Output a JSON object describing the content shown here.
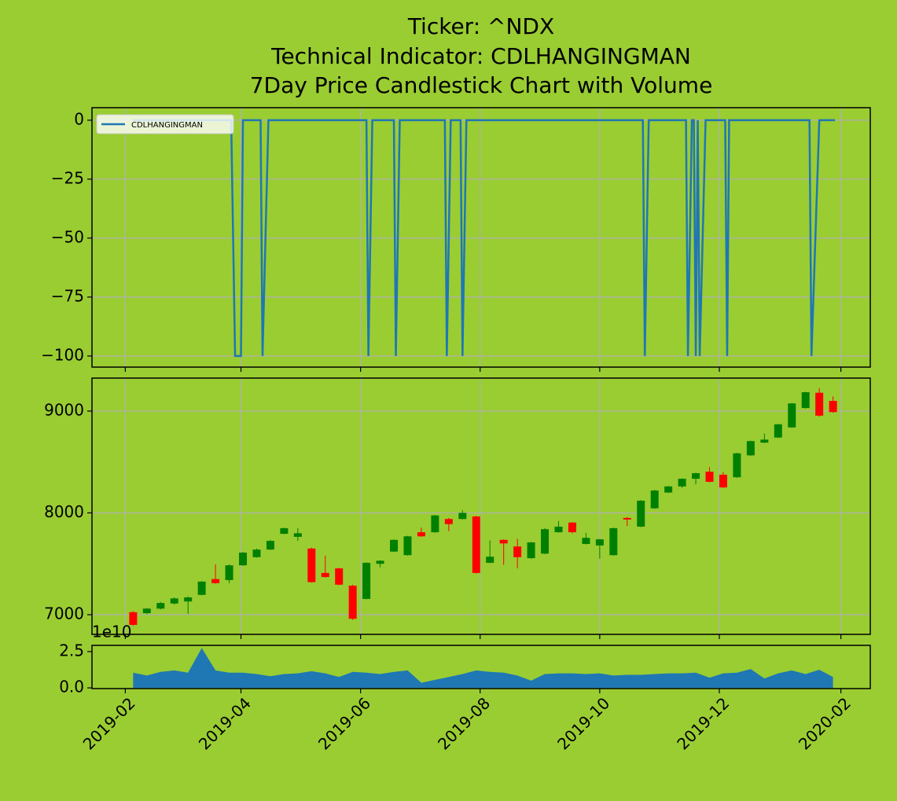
{
  "chart_data": [
    {
      "type": "line",
      "title": [
        "Ticker: ^NDX",
        "Technical Indicator: CDLHANGINGMAN",
        "7Day Price Candlestick Chart with Volume"
      ],
      "x": [
        "2019-02-05",
        "2019-03-27",
        "2019-03-29",
        "2019-04-01",
        "2019-04-02",
        "2019-04-11",
        "2019-04-12",
        "2019-04-15",
        "2019-06-04",
        "2019-06-05",
        "2019-06-07",
        "2019-06-18",
        "2019-06-19",
        "2019-06-21",
        "2019-07-14",
        "2019-07-15",
        "2019-07-17",
        "2019-07-22",
        "2019-07-23",
        "2019-07-25",
        "2019-10-23",
        "2019-10-24",
        "2019-10-26",
        "2019-11-14",
        "2019-11-15",
        "2019-11-17",
        "2019-11-18",
        "2019-11-19",
        "2019-11-20",
        "2019-11-21",
        "2019-11-24",
        "2019-12-04",
        "2019-12-05",
        "2019-12-06",
        "2020-01-16",
        "2020-01-17",
        "2020-01-21",
        "2020-01-29"
      ],
      "series": [
        {
          "name": "CDLHANGINGMAN",
          "color": "#1f77b4",
          "values": [
            0,
            0,
            -100,
            -100,
            0,
            0,
            -100,
            0,
            0,
            -100,
            0,
            0,
            -100,
            0,
            0,
            -100,
            0,
            0,
            -100,
            0,
            0,
            -100,
            0,
            0,
            -100,
            0,
            0,
            -100,
            0,
            -100,
            0,
            0,
            -100,
            0,
            0,
            -100,
            0,
            0
          ]
        }
      ],
      "ylim": [
        -104.7,
        5.3
      ],
      "yticks": [
        0,
        {
          "value": -25,
          "label": "−25"
        },
        {
          "value": -50,
          "label": "−50"
        },
        {
          "value": -75,
          "label": "−75"
        },
        {
          "value": -100,
          "label": "−100"
        }
      ],
      "grid": true,
      "legend": "upper left"
    },
    {
      "type": "candlestick",
      "x": [
        "2019-02-05",
        "2019-02-12",
        "2019-02-19",
        "2019-02-26",
        "2019-03-05",
        "2019-03-12",
        "2019-03-19",
        "2019-03-26",
        "2019-04-02",
        "2019-04-09",
        "2019-04-16",
        "2019-04-23",
        "2019-04-30",
        "2019-05-07",
        "2019-05-14",
        "2019-05-21",
        "2019-05-28",
        "2019-06-04",
        "2019-06-11",
        "2019-06-18",
        "2019-06-25",
        "2019-07-02",
        "2019-07-09",
        "2019-07-16",
        "2019-07-23",
        "2019-07-30",
        "2019-08-06",
        "2019-08-13",
        "2019-08-20",
        "2019-08-27",
        "2019-09-03",
        "2019-09-10",
        "2019-09-17",
        "2019-09-24",
        "2019-10-01",
        "2019-10-08",
        "2019-10-15",
        "2019-10-22",
        "2019-10-29",
        "2019-11-05",
        "2019-11-12",
        "2019-11-19",
        "2019-11-26",
        "2019-12-03",
        "2019-12-10",
        "2019-12-17",
        "2019-12-24",
        "2019-12-31",
        "2020-01-07",
        "2020-01-14",
        "2020-01-21",
        "2020-01-28"
      ],
      "open": [
        7025,
        7015,
        7060,
        7110,
        7130,
        7195,
        7350,
        7340,
        7485,
        7565,
        7640,
        7795,
        7765,
        7650,
        7410,
        7455,
        7285,
        7155,
        7500,
        7620,
        7585,
        7810,
        7810,
        7940,
        7940,
        7965,
        7510,
        7735,
        7670,
        7555,
        7600,
        7810,
        7905,
        7695,
        7680,
        7585,
        7950,
        7865,
        8045,
        8200,
        8260,
        8335,
        8405,
        8375,
        8350,
        8565,
        8690,
        8740,
        8840,
        9030,
        9180,
        9100
      ],
      "high": [
        7035,
        7065,
        7125,
        7170,
        7180,
        7330,
        7495,
        7495,
        7615,
        7650,
        7735,
        7855,
        7850,
        7660,
        7580,
        7460,
        7295,
        7515,
        7535,
        7740,
        7775,
        7855,
        7980,
        7950,
        8025,
        7970,
        7730,
        7740,
        7745,
        7715,
        7850,
        7920,
        7910,
        7805,
        7745,
        7855,
        7960,
        8125,
        8225,
        8265,
        8340,
        8395,
        8450,
        8400,
        8590,
        8710,
        8780,
        8875,
        9080,
        9190,
        9225,
        9145
      ],
      "low": [
        6890,
        7005,
        7050,
        7100,
        7010,
        7190,
        7305,
        7310,
        7480,
        7560,
        7635,
        7790,
        7725,
        7315,
        7365,
        7290,
        6950,
        7150,
        7465,
        7615,
        7580,
        7765,
        7805,
        7820,
        7935,
        7405,
        7505,
        7490,
        7455,
        7550,
        7595,
        7805,
        7800,
        7690,
        7550,
        7580,
        7870,
        7860,
        8040,
        8195,
        8245,
        8280,
        8300,
        8245,
        8345,
        8560,
        8685,
        8735,
        8835,
        9025,
        8945,
        8985
      ],
      "close": [
        6900,
        7060,
        7115,
        7160,
        7170,
        7325,
        7310,
        7485,
        7610,
        7640,
        7725,
        7850,
        7800,
        7320,
        7370,
        7295,
        6960,
        7510,
        7530,
        7735,
        7770,
        7770,
        7975,
        7890,
        8000,
        7410,
        7570,
        7700,
        7565,
        7710,
        7840,
        7865,
        7810,
        7755,
        7740,
        7850,
        7935,
        8120,
        8220,
        8260,
        8335,
        8390,
        8305,
        8250,
        8585,
        8705,
        8720,
        8870,
        9075,
        9185,
        8955,
        8990
      ],
      "up_color": "#008000",
      "down_color": "#ff0000",
      "ylim": [
        6807,
        9324
      ],
      "yticks": [
        7000,
        8000,
        9000
      ],
      "grid": true
    },
    {
      "type": "area",
      "x": [
        "2019-02-05",
        "2019-02-12",
        "2019-02-19",
        "2019-02-26",
        "2019-03-05",
        "2019-03-12",
        "2019-03-19",
        "2019-03-26",
        "2019-04-02",
        "2019-04-09",
        "2019-04-16",
        "2019-04-23",
        "2019-04-30",
        "2019-05-07",
        "2019-05-14",
        "2019-05-21",
        "2019-05-28",
        "2019-06-04",
        "2019-06-11",
        "2019-06-18",
        "2019-06-25",
        "2019-07-02",
        "2019-07-09",
        "2019-07-16",
        "2019-07-23",
        "2019-07-30",
        "2019-08-06",
        "2019-08-13",
        "2019-08-20",
        "2019-08-27",
        "2019-09-03",
        "2019-09-10",
        "2019-09-17",
        "2019-09-24",
        "2019-10-01",
        "2019-10-08",
        "2019-10-15",
        "2019-10-22",
        "2019-10-29",
        "2019-11-05",
        "2019-11-12",
        "2019-11-19",
        "2019-11-26",
        "2019-12-03",
        "2019-12-10",
        "2019-12-17",
        "2019-12-24",
        "2019-12-31",
        "2020-01-07",
        "2020-01-14",
        "2020-01-21",
        "2020-01-28"
      ],
      "values": [
        1.05,
        0.85,
        1.1,
        1.2,
        1.05,
        2.75,
        1.2,
        1.05,
        1.05,
        0.95,
        0.8,
        0.95,
        1.0,
        1.15,
        1.0,
        0.75,
        1.1,
        1.05,
        0.95,
        1.1,
        1.2,
        0.35,
        0.55,
        0.75,
        0.95,
        1.2,
        1.1,
        1.05,
        0.85,
        0.5,
        0.95,
        1.0,
        1.0,
        0.95,
        1.0,
        0.85,
        0.9,
        0.9,
        0.95,
        1.0,
        1.0,
        1.05,
        0.7,
        1.0,
        1.05,
        1.3,
        0.65,
        1.0,
        1.2,
        0.95,
        1.25,
        0.75
      ],
      "color": "#1f77b4",
      "ylim": [
        -0.05,
        2.93
      ],
      "yticks": [
        {
          "value": 0,
          "label": "0.0"
        },
        2.5
      ],
      "y_offset_label": "1e10",
      "xlim": [
        "2019-01-15",
        "2020-02-16"
      ],
      "xticks": [
        "2019-02",
        "2019-04",
        "2019-06",
        "2019-08",
        "2019-10",
        "2019-12",
        "2020-02"
      ]
    }
  ]
}
